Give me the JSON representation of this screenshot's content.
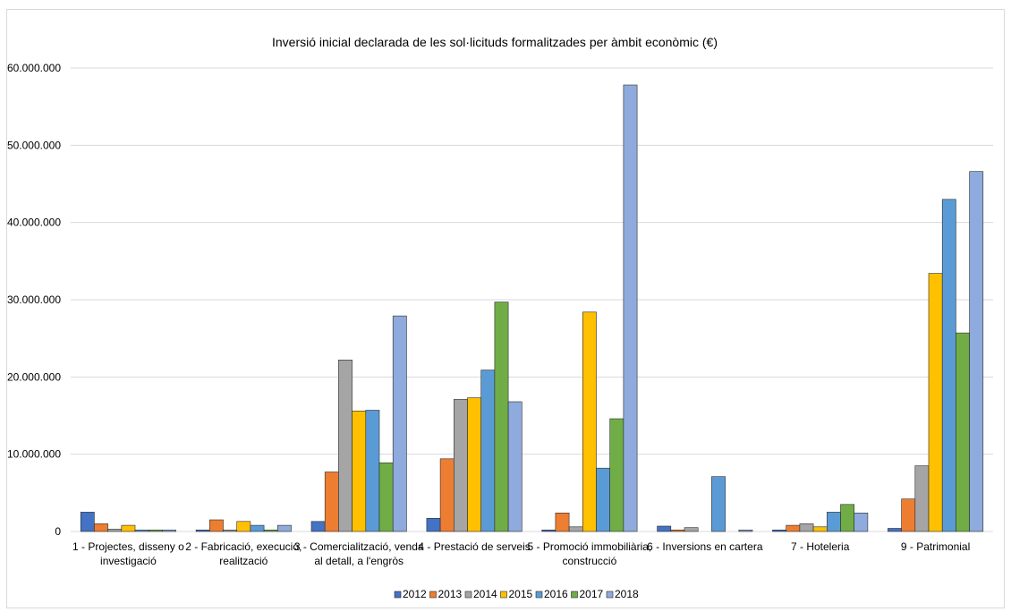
{
  "chart_data": {
    "type": "bar",
    "title": "Inversió inicial declarada de les sol·licituds formalitzades per àmbit econòmic (€)",
    "xlabel": "",
    "ylabel": "",
    "ylim": [
      0,
      60000000
    ],
    "y_ticks": [
      {
        "value": 0,
        "label": "0"
      },
      {
        "value": 10000000,
        "label": "10.000.000"
      },
      {
        "value": 20000000,
        "label": "20.000.000"
      },
      {
        "value": 30000000,
        "label": "30.000.000"
      },
      {
        "value": 40000000,
        "label": "40.000.000"
      },
      {
        "value": 50000000,
        "label": "50.000.000"
      },
      {
        "value": 60000000,
        "label": "60.000.000"
      }
    ],
    "grid": true,
    "legend": "bottom",
    "categories": [
      [
        "1 - Projectes, disseny o",
        "investigació"
      ],
      [
        "2 - Fabricació, execució,",
        "realització"
      ],
      [
        "3 - Comercialització, venda",
        "al detall, a l'engròs"
      ],
      [
        "4 - Prestació de serveis"
      ],
      [
        "5 - Promoció immobiliària,",
        "construcció"
      ],
      [
        "6 - Inversions en cartera"
      ],
      [
        "7 - Hoteleria"
      ],
      [
        "9 - Patrimonial"
      ]
    ],
    "series": [
      {
        "name": "2012",
        "color": "#4472c4",
        "values": [
          2500000,
          200000,
          1300000,
          1700000,
          200000,
          700000,
          200000,
          400000
        ]
      },
      {
        "name": "2013",
        "color": "#ed7d31",
        "values": [
          1000000,
          1500000,
          7700000,
          9400000,
          2400000,
          200000,
          800000,
          4200000
        ]
      },
      {
        "name": "2014",
        "color": "#a5a5a5",
        "values": [
          300000,
          200000,
          22200000,
          17100000,
          600000,
          500000,
          1000000,
          8500000
        ]
      },
      {
        "name": "2015",
        "color": "#ffc000",
        "values": [
          800000,
          1300000,
          15600000,
          17300000,
          28400000,
          0,
          600000,
          33400000
        ]
      },
      {
        "name": "2016",
        "color": "#5b9bd5",
        "values": [
          200000,
          800000,
          15700000,
          20900000,
          8200000,
          7100000,
          2500000,
          43000000
        ]
      },
      {
        "name": "2017",
        "color": "#70ad47",
        "values": [
          200000,
          200000,
          8900000,
          29700000,
          14600000,
          0,
          3500000,
          25700000
        ]
      },
      {
        "name": "2018",
        "color": "#8faadc",
        "values": [
          200000,
          800000,
          27900000,
          16800000,
          57800000,
          200000,
          2400000,
          46600000
        ]
      }
    ]
  }
}
